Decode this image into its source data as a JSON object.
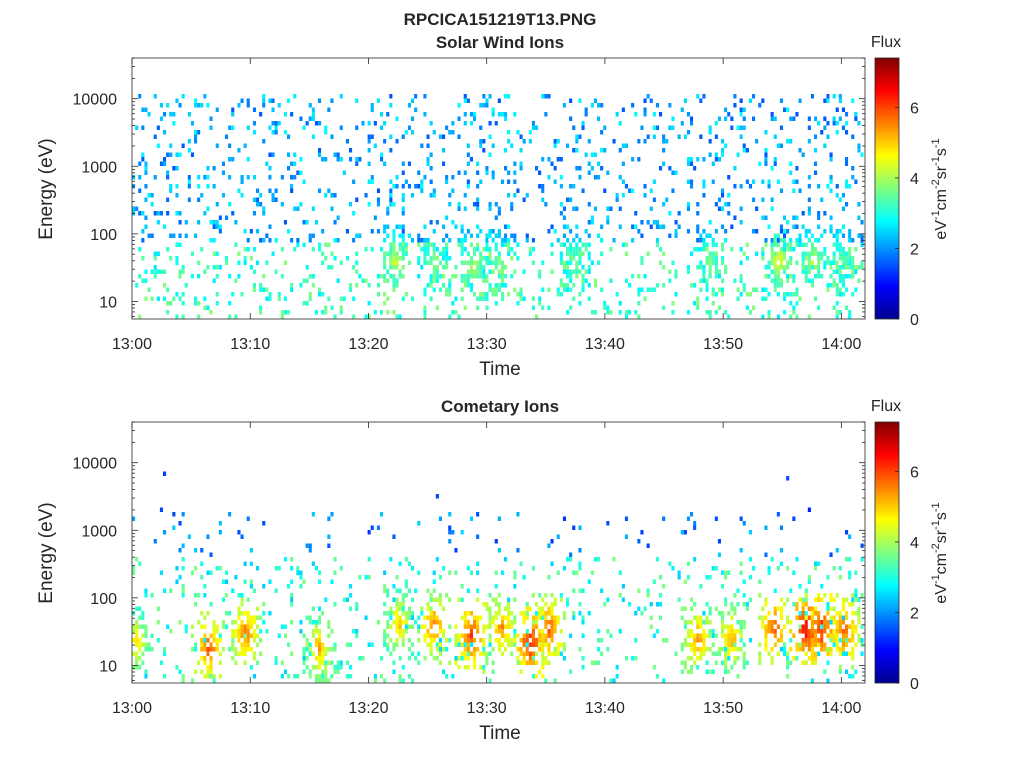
{
  "figure_title": "RPCICA151219T13.PNG",
  "chart_data": [
    {
      "type": "heatmap",
      "title": "Solar Wind Ions",
      "xlabel": "Time",
      "ylabel": "Energy (eV)",
      "x_tick_labels": [
        "13:00",
        "13:10",
        "13:20",
        "13:30",
        "13:40",
        "13:50",
        "14:00"
      ],
      "x_ticks_minutes": [
        0,
        10,
        20,
        30,
        40,
        50,
        60
      ],
      "xlim_minutes": [
        0,
        62
      ],
      "y_scale": "log",
      "ylim": [
        5.5,
        40000
      ],
      "y_tick_values": [
        10,
        100,
        1000,
        10000
      ],
      "y_tick_labels": [
        "10",
        "100",
        "1000",
        "10000"
      ],
      "colorbar": {
        "title": "Flux",
        "label": "eV-1cm-2sr-1s-1",
        "range": [
          0,
          7.4
        ],
        "ticks": [
          0,
          2,
          4,
          6
        ],
        "tick_labels": [
          "0",
          "2",
          "4",
          "6"
        ],
        "colormap": "jet"
      },
      "pattern": "solar",
      "hotspots_minutes": [],
      "hotspot_flux": [
        4.6,
        4.2,
        4.4,
        4.1,
        4.0,
        4.0,
        4.8,
        4.5,
        3.8
      ],
      "hotspot_minutes": [
        22.3,
        25.6,
        28.9,
        31.1,
        37.5,
        48.9,
        54.7,
        57.6,
        60.1
      ],
      "hotspot_energy_eV": [
        40,
        40,
        35,
        40,
        40,
        40,
        40,
        40,
        40
      ]
    },
    {
      "type": "heatmap",
      "title": "Cometary Ions",
      "xlabel": "Time",
      "ylabel": "Energy (eV)",
      "x_tick_labels": [
        "13:00",
        "13:10",
        "13:20",
        "13:30",
        "13:40",
        "13:50",
        "14:00"
      ],
      "x_ticks_minutes": [
        0,
        10,
        20,
        30,
        40,
        50,
        60
      ],
      "xlim_minutes": [
        0,
        62
      ],
      "y_scale": "log",
      "ylim": [
        5.5,
        40000
      ],
      "y_tick_values": [
        10,
        100,
        1000,
        10000
      ],
      "y_tick_labels": [
        "10",
        "100",
        "1000",
        "10000"
      ],
      "colorbar": {
        "title": "Flux",
        "label": "eV-1cm-2sr-1s-1",
        "range": [
          0,
          7.4
        ],
        "ticks": [
          0,
          2,
          4,
          6
        ],
        "tick_labels": [
          "0",
          "2",
          "4",
          "6"
        ],
        "colormap": "jet"
      },
      "pattern": "cometary",
      "hotspot_flux": [
        5.2,
        6.2,
        6.0,
        5.6,
        5.4,
        6.0,
        6.4,
        5.8,
        6.6,
        6.2,
        5.8,
        5.6,
        6.2,
        6.8,
        6.6,
        6.2
      ],
      "hotspot_minutes": [
        0.4,
        6.5,
        9.6,
        15.8,
        22.6,
        25.5,
        28.7,
        31.3,
        33.7,
        35.3,
        47.9,
        50.7,
        54.3,
        57.0,
        58.3,
        60.3
      ],
      "hotspot_energy_eV": [
        22,
        18,
        30,
        18,
        40,
        38,
        28,
        35,
        22,
        35,
        25,
        25,
        35,
        35,
        35,
        32
      ]
    }
  ]
}
